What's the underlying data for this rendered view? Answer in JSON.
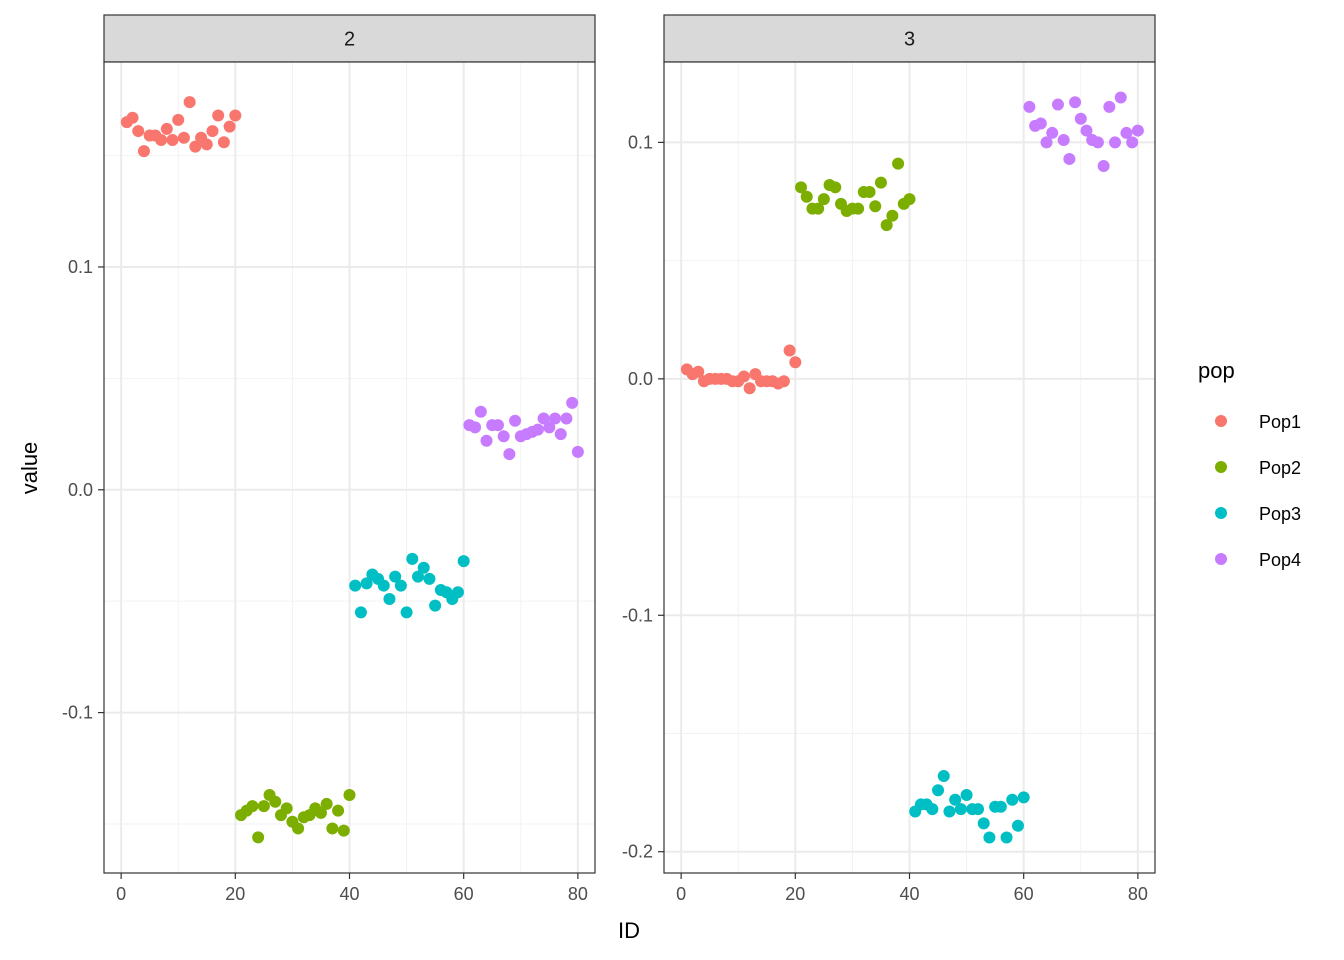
{
  "chart_data": {
    "type": "scatter",
    "xlabel": "ID",
    "ylabel": "value",
    "legend": {
      "title": "pop",
      "position": "right",
      "entries": [
        {
          "name": "Pop1",
          "color": "#F8766D"
        },
        {
          "name": "Pop2",
          "color": "#7CAE00"
        },
        {
          "name": "Pop3",
          "color": "#00BFC4"
        },
        {
          "name": "Pop4",
          "color": "#C77CFF"
        }
      ]
    },
    "grid": true,
    "facets": [
      {
        "strip_label": "2",
        "xlim": [
          -3,
          83
        ],
        "ylim": [
          -0.172,
          0.192
        ],
        "x_ticks": [
          0,
          20,
          40,
          60,
          80
        ],
        "y_ticks": [
          -0.1,
          0.0,
          0.1
        ],
        "y_tick_labels": [
          "-0.1",
          "0.0",
          "0.1"
        ],
        "series": [
          {
            "name": "Pop1",
            "x": [
              1,
              2,
              3,
              4,
              5,
              6,
              7,
              8,
              9,
              10,
              11,
              12,
              13,
              14,
              15,
              16,
              17,
              18,
              19,
              20
            ],
            "y": [
              0.165,
              0.167,
              0.161,
              0.152,
              0.159,
              0.159,
              0.157,
              0.162,
              0.157,
              0.166,
              0.158,
              0.174,
              0.154,
              0.158,
              0.155,
              0.161,
              0.168,
              0.156,
              0.163,
              0.168
            ]
          },
          {
            "name": "Pop2",
            "x": [
              21,
              22,
              23,
              24,
              25,
              26,
              27,
              28,
              29,
              30,
              31,
              32,
              33,
              34,
              35,
              36,
              37,
              38,
              39,
              40
            ],
            "y": [
              -0.146,
              -0.144,
              -0.142,
              -0.156,
              -0.142,
              -0.137,
              -0.14,
              -0.146,
              -0.143,
              -0.149,
              -0.152,
              -0.147,
              -0.146,
              -0.143,
              -0.145,
              -0.141,
              -0.152,
              -0.144,
              -0.153,
              -0.137
            ]
          },
          {
            "name": "Pop3",
            "x": [
              41,
              42,
              43,
              44,
              45,
              46,
              47,
              48,
              49,
              50,
              51,
              52,
              53,
              54,
              55,
              56,
              57,
              58,
              59,
              60
            ],
            "y": [
              -0.043,
              -0.055,
              -0.042,
              -0.038,
              -0.04,
              -0.043,
              -0.049,
              -0.039,
              -0.043,
              -0.055,
              -0.031,
              -0.039,
              -0.035,
              -0.04,
              -0.052,
              -0.045,
              -0.046,
              -0.049,
              -0.046,
              -0.032
            ]
          },
          {
            "name": "Pop4",
            "x": [
              61,
              62,
              63,
              64,
              65,
              66,
              67,
              68,
              69,
              70,
              71,
              72,
              73,
              74,
              75,
              76,
              77,
              78,
              79,
              80
            ],
            "y": [
              0.029,
              0.028,
              0.035,
              0.022,
              0.029,
              0.029,
              0.024,
              0.016,
              0.031,
              0.024,
              0.025,
              0.026,
              0.027,
              0.032,
              0.028,
              0.032,
              0.025,
              0.032,
              0.039,
              0.017
            ]
          }
        ]
      },
      {
        "strip_label": "3",
        "xlim": [
          -3,
          83
        ],
        "ylim": [
          -0.209,
          0.134
        ],
        "x_ticks": [
          0,
          20,
          40,
          60,
          80
        ],
        "y_ticks": [
          -0.2,
          -0.1,
          0.0,
          0.1
        ],
        "y_tick_labels": [
          "-0.2",
          "-0.1",
          "0.0",
          "0.1"
        ],
        "series": [
          {
            "name": "Pop1",
            "x": [
              1,
              2,
              3,
              4,
              5,
              6,
              7,
              8,
              9,
              10,
              11,
              12,
              13,
              14,
              15,
              16,
              17,
              18,
              19,
              20
            ],
            "y": [
              0.004,
              0.002,
              0.003,
              -0.001,
              0.0,
              0.0,
              0.0,
              0.0,
              -0.001,
              -0.001,
              0.001,
              -0.004,
              0.002,
              -0.001,
              -0.001,
              -0.001,
              -0.002,
              -0.001,
              0.012,
              0.007
            ]
          },
          {
            "name": "Pop2",
            "x": [
              21,
              22,
              23,
              24,
              25,
              26,
              27,
              28,
              29,
              30,
              31,
              32,
              33,
              34,
              35,
              36,
              37,
              38,
              39,
              40
            ],
            "y": [
              0.081,
              0.077,
              0.072,
              0.072,
              0.076,
              0.082,
              0.081,
              0.074,
              0.071,
              0.072,
              0.072,
              0.079,
              0.079,
              0.073,
              0.083,
              0.065,
              0.069,
              0.091,
              0.074,
              0.076
            ]
          },
          {
            "name": "Pop3",
            "x": [
              41,
              42,
              43,
              44,
              45,
              46,
              47,
              48,
              49,
              50,
              51,
              52,
              53,
              54,
              55,
              56,
              57,
              58,
              59,
              60
            ],
            "y": [
              -0.183,
              -0.18,
              -0.18,
              -0.182,
              -0.174,
              -0.168,
              -0.183,
              -0.178,
              -0.182,
              -0.176,
              -0.182,
              -0.182,
              -0.188,
              -0.194,
              -0.181,
              -0.181,
              -0.194,
              -0.178,
              -0.189,
              -0.177
            ]
          },
          {
            "name": "Pop4",
            "x": [
              61,
              62,
              63,
              64,
              65,
              66,
              67,
              68,
              69,
              70,
              71,
              72,
              73,
              74,
              75,
              76,
              77,
              78,
              79,
              80
            ],
            "y": [
              0.115,
              0.107,
              0.108,
              0.1,
              0.104,
              0.116,
              0.101,
              0.093,
              0.117,
              0.11,
              0.105,
              0.101,
              0.1,
              0.09,
              0.115,
              0.1,
              0.119,
              0.104,
              0.1,
              0.105
            ]
          }
        ]
      }
    ]
  }
}
